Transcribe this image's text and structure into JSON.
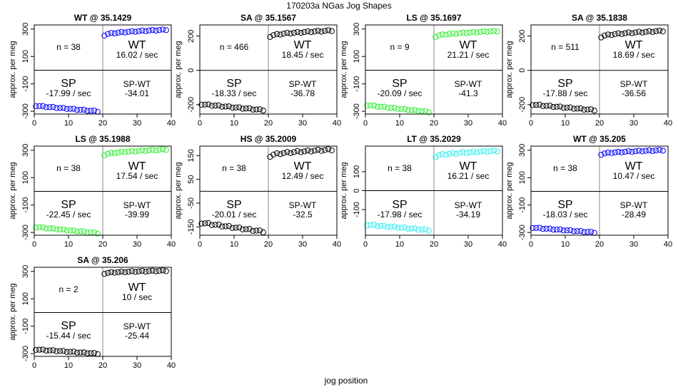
{
  "title": "170203a   NGas Jog Shapes",
  "xlabel": "jog position",
  "chart_data": [
    {
      "type": "scatter",
      "title": "WT @ 35.1429",
      "ylabel": "approx. per meg",
      "xlim": [
        0,
        40
      ],
      "ylim": [
        -320,
        330
      ],
      "xticks": [
        0,
        10,
        20,
        30,
        40
      ],
      "yticks": [
        -300,
        -100,
        100,
        300
      ],
      "color": "#0000ff",
      "n_label": "n = 38",
      "wt_label": "WT",
      "wt_rate": "16.02 / sec",
      "sp_label": "SP",
      "sp_rate": "-17.99 / sec",
      "spwt_label": "SP-WT",
      "spwt_value": "-34.01",
      "sp_start": -260,
      "sp_end": -300,
      "wt_start": 255,
      "wt_end": 295
    },
    {
      "type": "scatter",
      "title": "SA @ 35.1567",
      "ylabel": "approx. per meg",
      "xlim": [
        0,
        40
      ],
      "ylim": [
        -255,
        265
      ],
      "xticks": [
        0,
        10,
        20,
        30,
        40
      ],
      "yticks": [
        -200,
        0,
        200
      ],
      "color": "#000000",
      "n_label": "n = 466",
      "wt_label": "WT",
      "wt_rate": "18.45 / sec",
      "sp_label": "SP",
      "sp_rate": "-18.33 / sec",
      "spwt_label": "SP-WT",
      "spwt_value": "-36.78",
      "sp_start": -198,
      "sp_end": -232,
      "wt_start": 198,
      "wt_end": 232
    },
    {
      "type": "scatter",
      "title": "LS @ 35.1697",
      "ylabel": "approx. per meg",
      "xlim": [
        0,
        40
      ],
      "ylim": [
        -320,
        330
      ],
      "xticks": [
        0,
        10,
        20,
        30,
        40
      ],
      "yticks": [
        -300,
        -100,
        100,
        300
      ],
      "color": "#33ee33",
      "n_label": "n = 9",
      "wt_label": "WT",
      "wt_rate": "21.21 / sec",
      "sp_label": "SP",
      "sp_rate": "-20.09 / sec",
      "spwt_label": "SP-WT",
      "spwt_value": "-41.3",
      "sp_start": -255,
      "sp_end": -305,
      "wt_start": 245,
      "wt_end": 285
    },
    {
      "type": "scatter",
      "title": "SA @ 35.1838",
      "ylabel": "approx. per meg",
      "xlim": [
        0,
        40
      ],
      "ylim": [
        -255,
        265
      ],
      "xticks": [
        0,
        10,
        20,
        30,
        40
      ],
      "yticks": [
        -200,
        0,
        200
      ],
      "color": "#000000",
      "n_label": "n = 511",
      "wt_label": "WT",
      "wt_rate": "18.69 / sec",
      "sp_label": "SP",
      "sp_rate": "-17.88 / sec",
      "spwt_label": "SP-WT",
      "spwt_value": "-36.56",
      "sp_start": -200,
      "sp_end": -232,
      "wt_start": 195,
      "wt_end": 230
    },
    {
      "type": "scatter",
      "title": "LS @ 35.1988",
      "ylabel": "approx. per meg",
      "xlim": [
        0,
        40
      ],
      "ylim": [
        -320,
        330
      ],
      "xticks": [
        0,
        10,
        20,
        30,
        40
      ],
      "yticks": [
        -300,
        -100,
        100,
        300
      ],
      "color": "#33ee33",
      "n_label": "n = 38",
      "wt_label": "WT",
      "wt_rate": "17.54 / sec",
      "sp_label": "SP",
      "sp_rate": "-22.45 / sec",
      "spwt_label": "SP-WT",
      "spwt_value": "-39.99",
      "sp_start": -260,
      "sp_end": -305,
      "wt_start": 265,
      "wt_end": 305
    },
    {
      "type": "scatter",
      "title": "HS @ 35.2009",
      "ylabel": "approx. per meg",
      "xlim": [
        0,
        40
      ],
      "ylim": [
        -185,
        190
      ],
      "xticks": [
        0,
        10,
        20,
        30,
        40
      ],
      "yticks": [
        -150,
        -50,
        50,
        150
      ],
      "color": "#000000",
      "n_label": "n = 38",
      "wt_label": "WT",
      "wt_rate": "12.49 / sec",
      "sp_label": "SP",
      "sp_rate": "-20.01 / sec",
      "spwt_label": "SP-WT",
      "spwt_value": "-32.5",
      "sp_start": -133,
      "sp_end": -170,
      "wt_start": 148,
      "wt_end": 175
    },
    {
      "type": "scatter",
      "title": "LT @ 35.2029",
      "ylabel": "approx. per meg",
      "xlim": [
        0,
        40
      ],
      "ylim": [
        -235,
        235
      ],
      "xticks": [
        0,
        10,
        20,
        30,
        40
      ],
      "yticks": [
        -100,
        0,
        100
      ],
      "color": "#33eeee",
      "n_label": "n = 38",
      "wt_label": "WT",
      "wt_rate": "16.21 / sec",
      "sp_label": "SP",
      "sp_rate": "-17.98 / sec",
      "spwt_label": "SP-WT",
      "spwt_value": "-34.19",
      "sp_start": -180,
      "sp_end": -208,
      "wt_start": 180,
      "wt_end": 210
    },
    {
      "type": "scatter",
      "title": "WT @ 35.205",
      "ylabel": "approx. per meg",
      "xlim": [
        0,
        40
      ],
      "ylim": [
        -320,
        330
      ],
      "xticks": [
        0,
        10,
        20,
        30,
        40
      ],
      "yticks": [
        -300,
        -100,
        100,
        300
      ],
      "color": "#0000ff",
      "n_label": "n = 38",
      "wt_label": "WT",
      "wt_rate": "10.47 / sec",
      "sp_label": "SP",
      "sp_rate": "-18.03 / sec",
      "spwt_label": "SP-WT",
      "spwt_value": "-28.49",
      "sp_start": -265,
      "sp_end": -300,
      "wt_start": 270,
      "wt_end": 300
    },
    {
      "type": "scatter",
      "title": "SA @ 35.206",
      "ylabel": "approx. per meg",
      "xlim": [
        0,
        40
      ],
      "ylim": [
        -320,
        330
      ],
      "xticks": [
        0,
        10,
        20,
        30,
        40
      ],
      "yticks": [
        -300,
        -100,
        100,
        300
      ],
      "color": "#000000",
      "n_label": "n = 2",
      "wt_label": "WT",
      "wt_rate": "10 / sec",
      "sp_label": "SP",
      "sp_rate": "-15.44 / sec",
      "spwt_label": "SP-WT",
      "spwt_value": "-25.44",
      "sp_start": -270,
      "sp_end": -300,
      "wt_start": 285,
      "wt_end": 305
    }
  ]
}
